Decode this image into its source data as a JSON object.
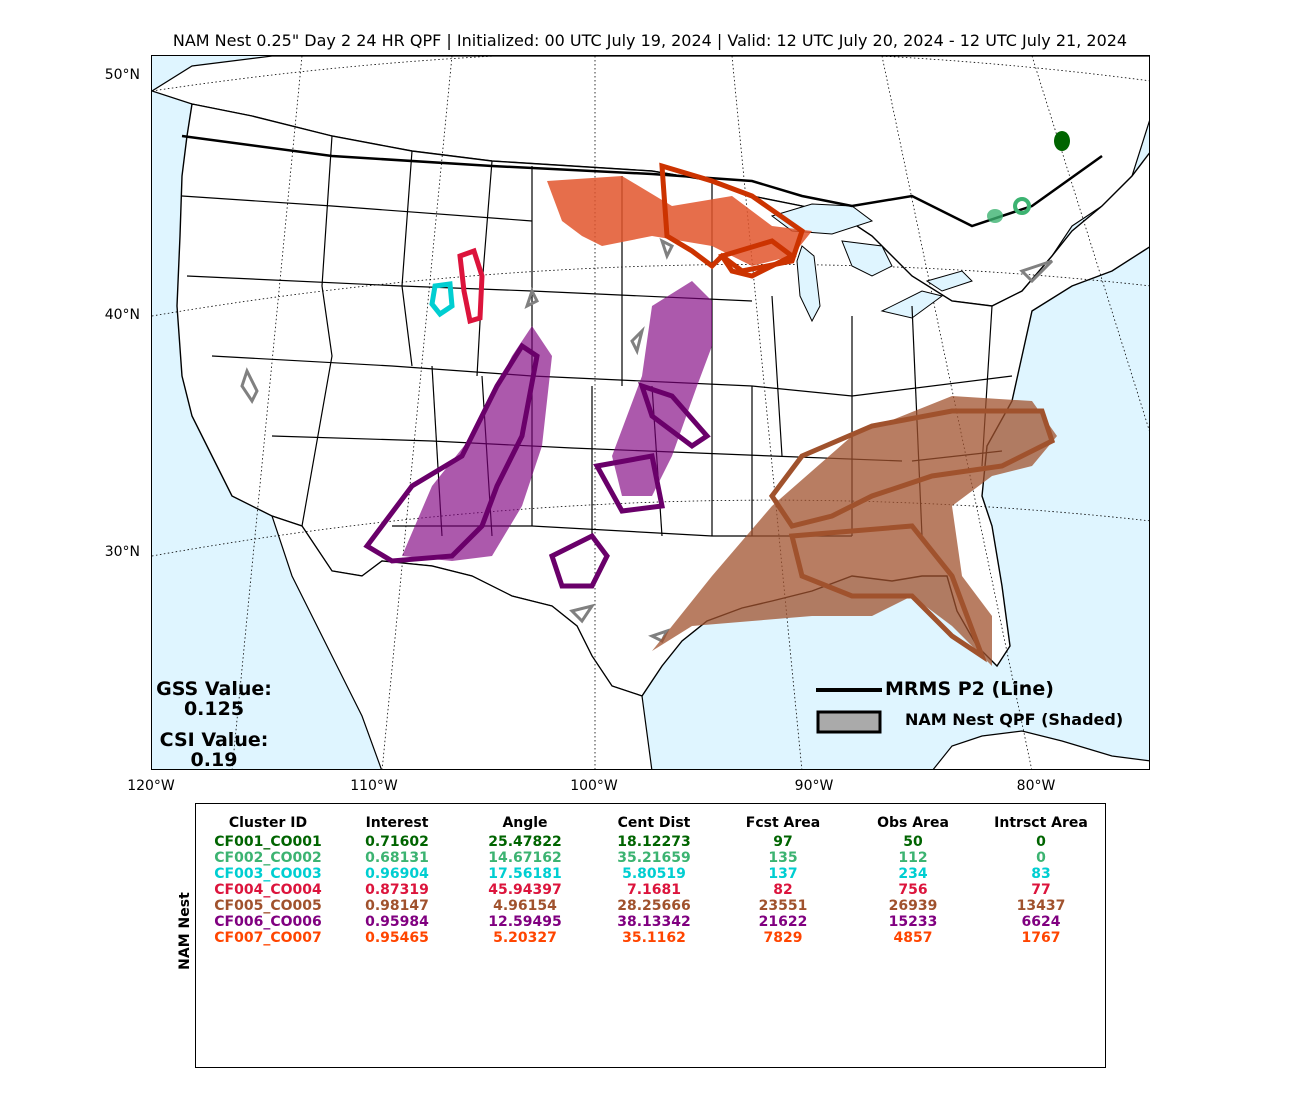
{
  "title": "NAM Nest 0.25\" Day 2 24 HR QPF | Initialized: 00 UTC July 19, 2024 | Valid: 12 UTC July 20, 2024 - 12 UTC July 21, 2024",
  "map": {
    "lat_labels": [
      "50°N",
      "40°N",
      "30°N"
    ],
    "lon_labels": [
      "120°W",
      "110°W",
      "100°W",
      "90°W",
      "80°W"
    ],
    "colors": {
      "ocean": "#dff5ff",
      "land": "#ffffff",
      "border": "#000000",
      "obs_gray": "#808080"
    }
  },
  "stats": {
    "gss_label": "GSS Value:",
    "gss_value": "0.125",
    "csi_label": "CSI Value:",
    "csi_value": "0.19"
  },
  "legend": {
    "line_label": "MRMS P2 (Line)",
    "shaded_label": "NAM Nest QPF (Shaded)"
  },
  "table": {
    "model_label": "NAM Nest",
    "headers": [
      "Cluster ID",
      "Interest",
      "Angle",
      "Cent Dist",
      "Fcst Area",
      "Obs Area",
      "Intrsct Area"
    ],
    "rows": [
      {
        "color": "#006400",
        "cells": [
          "CF001_CO001",
          "0.71602",
          "25.47822",
          "18.12273",
          "97",
          "50",
          "0"
        ]
      },
      {
        "color": "#3cb371",
        "cells": [
          "CF002_CO002",
          "0.68131",
          "14.67162",
          "35.21659",
          "135",
          "112",
          "0"
        ]
      },
      {
        "color": "#00ced1",
        "cells": [
          "CF003_CO003",
          "0.96904",
          "17.56181",
          "5.80519",
          "137",
          "234",
          "83"
        ]
      },
      {
        "color": "#dc143c",
        "cells": [
          "CF004_CO004",
          "0.87319",
          "45.94397",
          "7.1681",
          "82",
          "756",
          "77"
        ]
      },
      {
        "color": "#a0522d",
        "cells": [
          "CF005_CO005",
          "0.98147",
          "4.96154",
          "28.25666",
          "23551",
          "26939",
          "13437"
        ]
      },
      {
        "color": "#800080",
        "cells": [
          "CF006_CO006",
          "0.95984",
          "12.59495",
          "38.13342",
          "21622",
          "15233",
          "6624"
        ]
      },
      {
        "color": "#ff4500",
        "cells": [
          "CF007_CO007",
          "0.95465",
          "5.20327",
          "35.1162",
          "7829",
          "4857",
          "1767"
        ]
      }
    ]
  }
}
